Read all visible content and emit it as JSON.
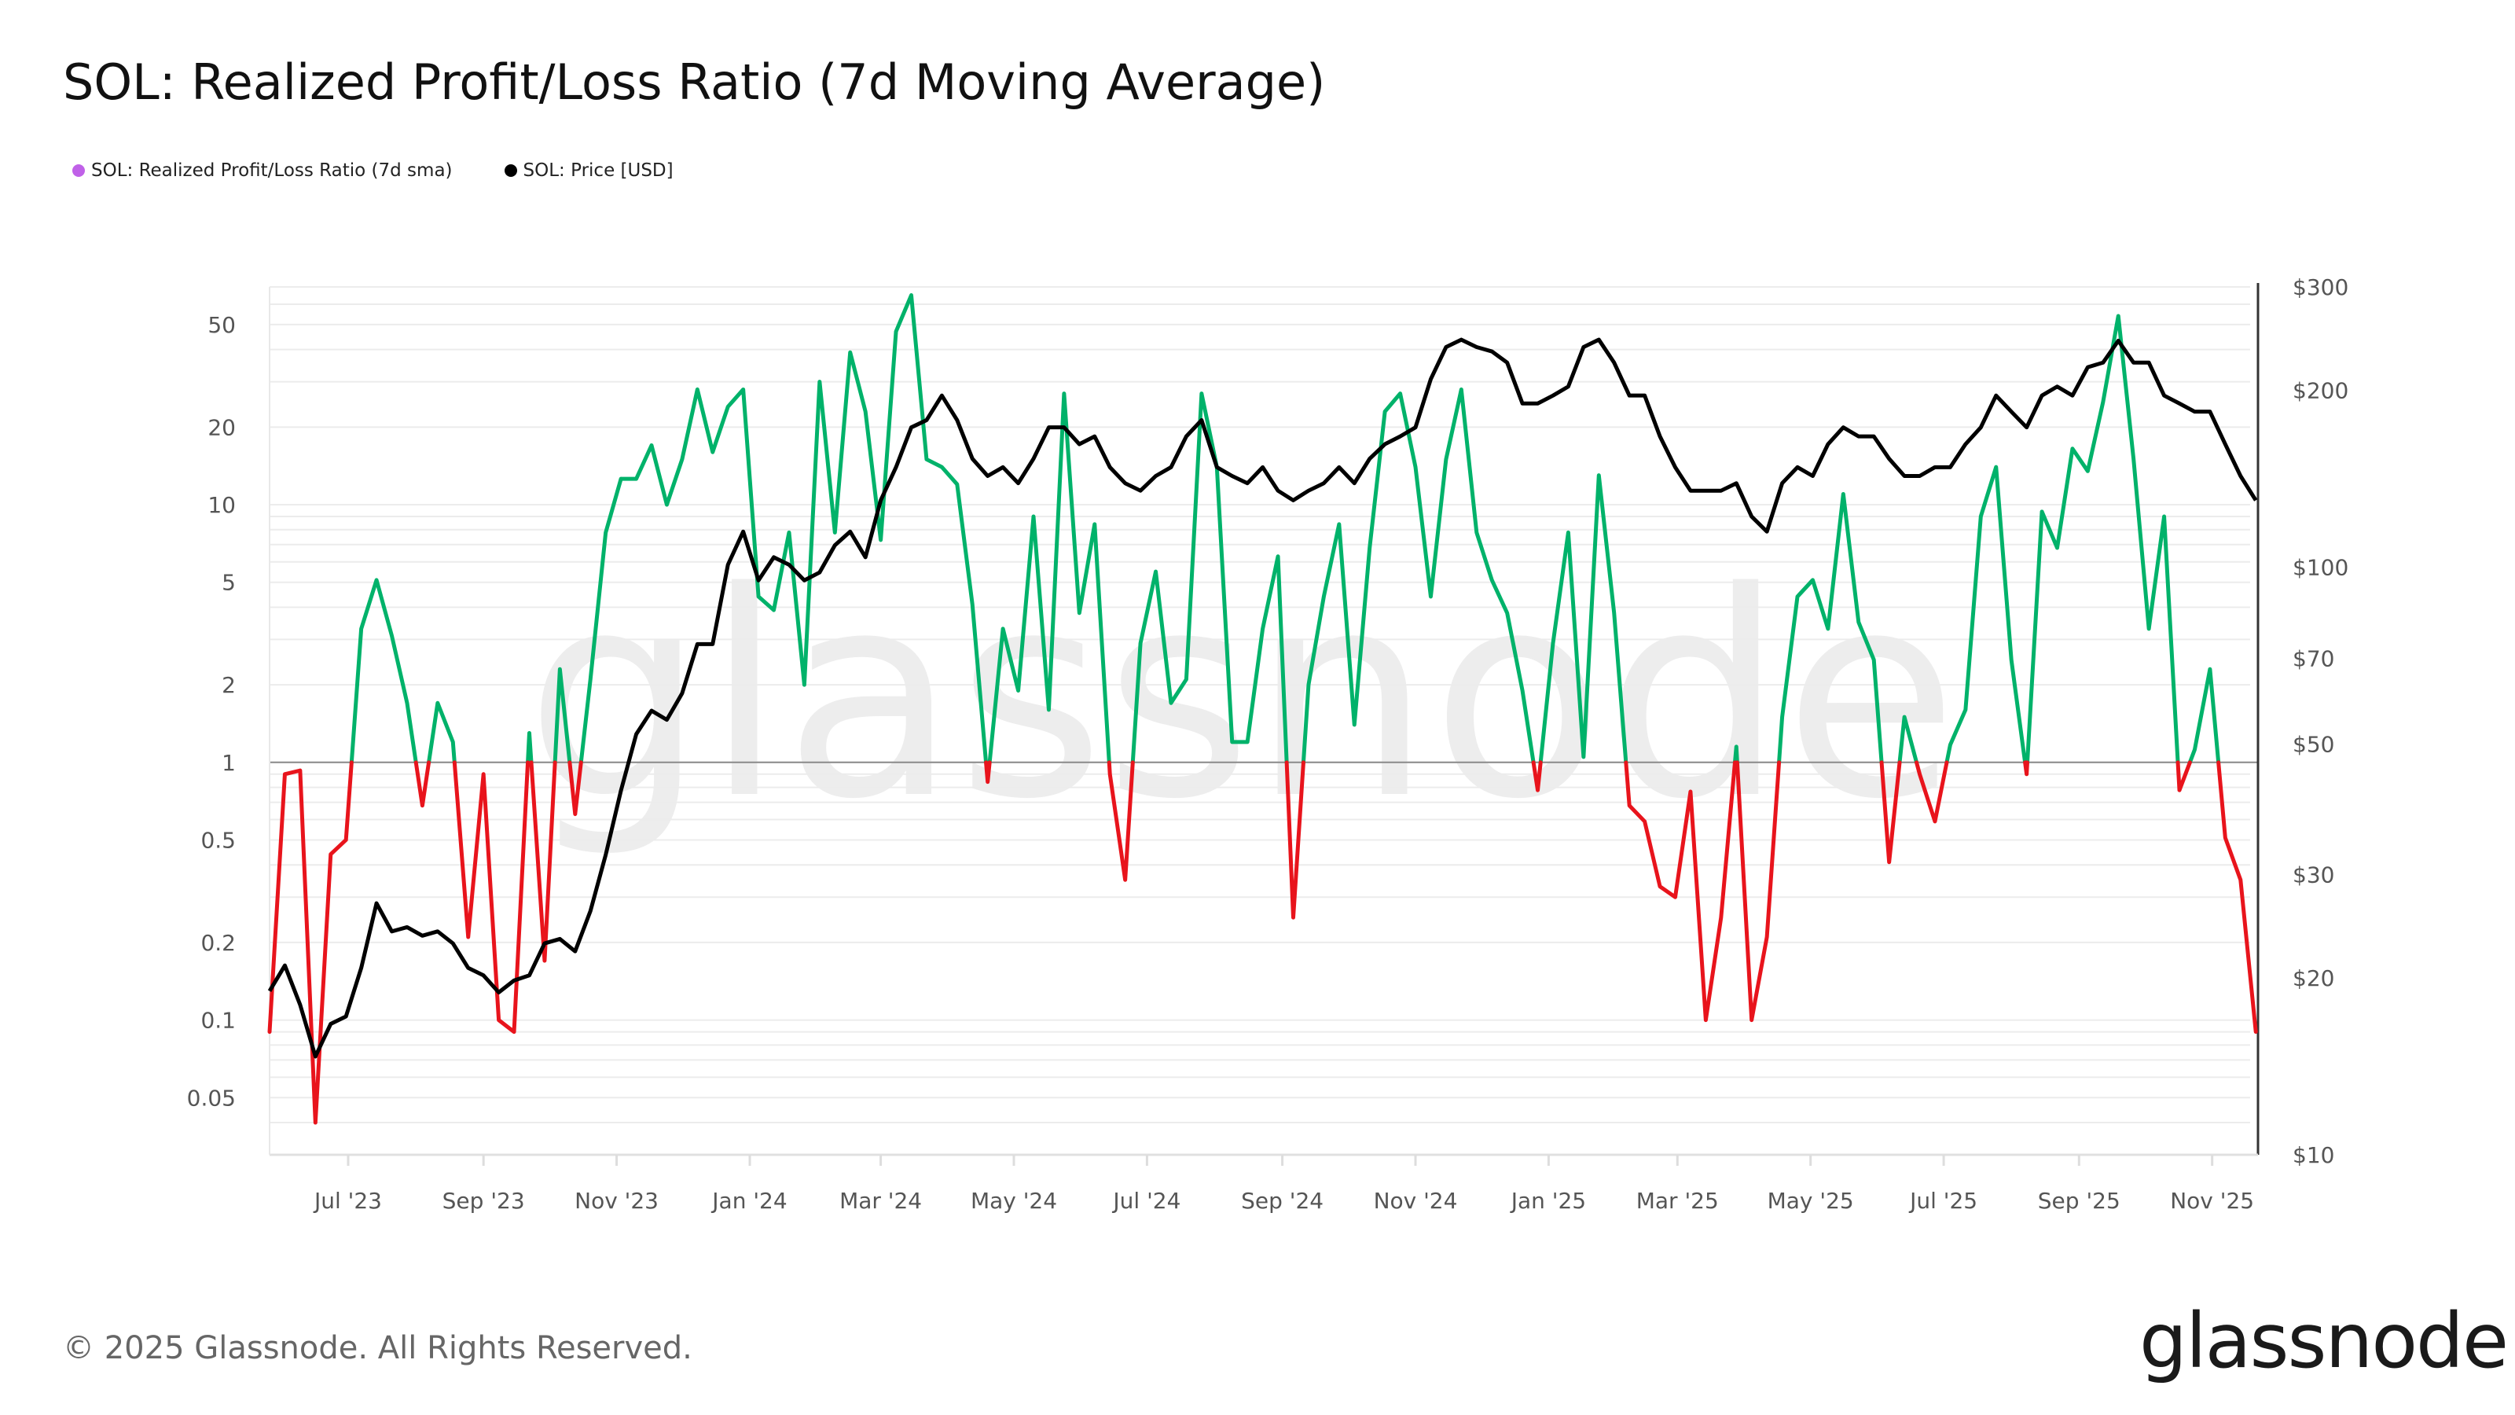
{
  "title": "SOL: Realized Profit/Loss Ratio (7d Moving Average)",
  "legend": [
    {
      "label": "SOL: Realized Profit/Loss Ratio (7d sma)",
      "color": "#c061e8"
    },
    {
      "label": "SOL: Price [USD]",
      "color": "#000000"
    }
  ],
  "footer": "© 2025 Glassnode. All Rights Reserved.",
  "logo": "glassnode",
  "watermark": "glassnode",
  "colors": {
    "profit": "#00b26a",
    "loss": "#e8141c",
    "price": "#000000",
    "grid": "#ececec",
    "baseline": "#8a8a8a"
  },
  "chart_data": {
    "type": "line",
    "title": "SOL: Realized Profit/Loss Ratio (7d Moving Average)",
    "xlim": [
      "2023-05-26",
      "2025-11-22"
    ],
    "x_ticks": [
      {
        "date": "2023-07-01",
        "label": "Jul '23"
      },
      {
        "date": "2023-09-01",
        "label": "Sep '23"
      },
      {
        "date": "2023-11-01",
        "label": "Nov '23"
      },
      {
        "date": "2024-01-01",
        "label": "Jan '24"
      },
      {
        "date": "2024-03-01",
        "label": "Mar '24"
      },
      {
        "date": "2024-05-01",
        "label": "May '24"
      },
      {
        "date": "2024-07-01",
        "label": "Jul '24"
      },
      {
        "date": "2024-09-01",
        "label": "Sep '24"
      },
      {
        "date": "2024-11-01",
        "label": "Nov '24"
      },
      {
        "date": "2025-01-01",
        "label": "Jan '25"
      },
      {
        "date": "2025-03-01",
        "label": "Mar '25"
      },
      {
        "date": "2025-05-01",
        "label": "May '25"
      },
      {
        "date": "2025-07-01",
        "label": "Jul '25"
      },
      {
        "date": "2025-09-01",
        "label": "Sep '25"
      },
      {
        "date": "2025-11-01",
        "label": "Nov '25"
      }
    ],
    "y_left": {
      "scale": "log",
      "ylim": [
        0.03,
        70
      ],
      "ticks": [
        0.05,
        0.1,
        0.2,
        0.5,
        1,
        2,
        5,
        10,
        20,
        50
      ],
      "tick_labels": [
        "0.05",
        "0.1",
        "0.2",
        "0.5",
        "1",
        "2",
        "5",
        "10",
        "20",
        "50"
      ],
      "threshold": 1
    },
    "y_right": {
      "scale": "log",
      "ylim": [
        10,
        300
      ],
      "ticks": [
        10,
        20,
        30,
        50,
        70,
        100,
        200,
        300
      ],
      "tick_labels": [
        "$10",
        "$20",
        "$30",
        "$50",
        "$70",
        "$100",
        "$200",
        "$300"
      ]
    },
    "grid": true,
    "legend_placement": "top-left",
    "x": [
      "2023-05-26",
      "2023-06-02",
      "2023-06-09",
      "2023-06-16",
      "2023-06-23",
      "2023-06-30",
      "2023-07-07",
      "2023-07-14",
      "2023-07-21",
      "2023-07-28",
      "2023-08-04",
      "2023-08-11",
      "2023-08-18",
      "2023-08-25",
      "2023-09-01",
      "2023-09-08",
      "2023-09-15",
      "2023-09-22",
      "2023-09-29",
      "2023-10-06",
      "2023-10-13",
      "2023-10-20",
      "2023-10-27",
      "2023-11-03",
      "2023-11-10",
      "2023-11-17",
      "2023-11-24",
      "2023-12-01",
      "2023-12-08",
      "2023-12-15",
      "2023-12-22",
      "2023-12-29",
      "2024-01-05",
      "2024-01-12",
      "2024-01-19",
      "2024-01-26",
      "2024-02-02",
      "2024-02-09",
      "2024-02-16",
      "2024-02-23",
      "2024-03-01",
      "2024-03-08",
      "2024-03-15",
      "2024-03-22",
      "2024-03-29",
      "2024-04-05",
      "2024-04-12",
      "2024-04-19",
      "2024-04-26",
      "2024-05-03",
      "2024-05-10",
      "2024-05-17",
      "2024-05-24",
      "2024-05-31",
      "2024-06-07",
      "2024-06-14",
      "2024-06-21",
      "2024-06-28",
      "2024-07-05",
      "2024-07-12",
      "2024-07-19",
      "2024-07-26",
      "2024-08-02",
      "2024-08-09",
      "2024-08-16",
      "2024-08-23",
      "2024-08-30",
      "2024-09-06",
      "2024-09-13",
      "2024-09-20",
      "2024-09-27",
      "2024-10-04",
      "2024-10-11",
      "2024-10-18",
      "2024-10-25",
      "2024-11-01",
      "2024-11-08",
      "2024-11-15",
      "2024-11-22",
      "2024-11-29",
      "2024-12-06",
      "2024-12-13",
      "2024-12-20",
      "2024-12-27",
      "2025-01-03",
      "2025-01-10",
      "2025-01-17",
      "2025-01-24",
      "2025-01-31",
      "2025-02-07",
      "2025-02-14",
      "2025-02-21",
      "2025-02-28",
      "2025-03-07",
      "2025-03-14",
      "2025-03-21",
      "2025-03-28",
      "2025-04-04",
      "2025-04-11",
      "2025-04-18",
      "2025-04-25",
      "2025-05-02",
      "2025-05-09",
      "2025-05-16",
      "2025-05-23",
      "2025-05-30",
      "2025-06-06",
      "2025-06-13",
      "2025-06-20",
      "2025-06-27",
      "2025-07-04",
      "2025-07-11",
      "2025-07-18",
      "2025-07-25",
      "2025-08-01",
      "2025-08-08",
      "2025-08-15",
      "2025-08-22",
      "2025-08-29",
      "2025-09-05",
      "2025-09-12",
      "2025-09-19",
      "2025-09-26",
      "2025-10-03",
      "2025-10-10",
      "2025-10-17",
      "2025-10-24",
      "2025-10-31",
      "2025-11-07",
      "2025-11-14",
      "2025-11-21"
    ],
    "series": [
      {
        "name": "SOL: Realized Profit/Loss Ratio (7d sma)",
        "axis": "left",
        "values": [
          0.09,
          0.9,
          0.93,
          0.04,
          0.44,
          0.5,
          3.3,
          5.1,
          3.1,
          1.7,
          0.68,
          1.7,
          1.2,
          0.21,
          0.9,
          0.1,
          0.09,
          1.3,
          0.17,
          2.3,
          0.63,
          2.1,
          7.8,
          12.6,
          12.6,
          17,
          10,
          15,
          28,
          16,
          24,
          28,
          4.4,
          3.9,
          7.8,
          2,
          30,
          7.8,
          39,
          23,
          7.3,
          47,
          65,
          15,
          14,
          12,
          4.1,
          0.84,
          3.3,
          1.9,
          9,
          1.6,
          27,
          3.8,
          8.4,
          0.9,
          0.35,
          2.9,
          5.5,
          1.7,
          2.1,
          27,
          14,
          1.2,
          1.2,
          3.3,
          6.3,
          0.25,
          2,
          4.4,
          8.4,
          1.4,
          6.8,
          23,
          27,
          14,
          4.4,
          15,
          28,
          7.8,
          5.1,
          3.8,
          1.9,
          0.78,
          2.9,
          7.8,
          1.05,
          13,
          3.8,
          0.68,
          0.59,
          0.33,
          0.3,
          0.77,
          0.1,
          0.25,
          1.15,
          0.1,
          0.21,
          1.5,
          4.4,
          5.1,
          3.3,
          11,
          3.5,
          2.5,
          0.41,
          1.5,
          0.9,
          0.59,
          1.17,
          1.6,
          9,
          14,
          2.5,
          0.9,
          9.4,
          6.8,
          16.5,
          13.5,
          25,
          54,
          15,
          3.3,
          9,
          0.78,
          1.12,
          2.3,
          0.51,
          0.35,
          0.09
        ]
      },
      {
        "name": "SOL: Price [USD]",
        "axis": "right",
        "values": [
          19,
          21,
          18,
          14.7,
          16.7,
          17.2,
          20.8,
          26.8,
          24,
          24.4,
          23.6,
          24,
          22.9,
          20.8,
          20.2,
          18.9,
          19.8,
          20.2,
          22.9,
          23.3,
          22.2,
          26,
          32.4,
          41.7,
          52,
          57,
          55,
          61,
          74,
          74,
          101,
          115,
          95,
          104,
          101,
          95,
          98,
          109,
          115,
          104,
          130,
          148,
          173,
          178,
          196,
          178,
          153,
          143,
          148,
          139,
          153,
          173,
          173,
          162,
          167,
          148,
          139,
          135,
          143,
          148,
          167,
          178,
          148,
          143,
          139,
          148,
          135,
          130,
          135,
          139,
          148,
          139,
          153,
          162,
          167,
          173,
          209,
          237,
          244,
          237,
          233,
          223,
          190,
          190,
          196,
          203,
          237,
          244,
          223,
          196,
          196,
          167,
          148,
          135,
          135,
          135,
          139,
          122,
          115,
          139,
          148,
          143,
          162,
          173,
          167,
          167,
          153,
          143,
          143,
          148,
          148,
          162,
          173,
          196,
          184,
          173,
          196,
          203,
          196,
          219,
          223,
          243,
          223,
          223,
          196,
          190,
          184,
          184,
          162,
          143,
          130
        ]
      }
    ]
  }
}
